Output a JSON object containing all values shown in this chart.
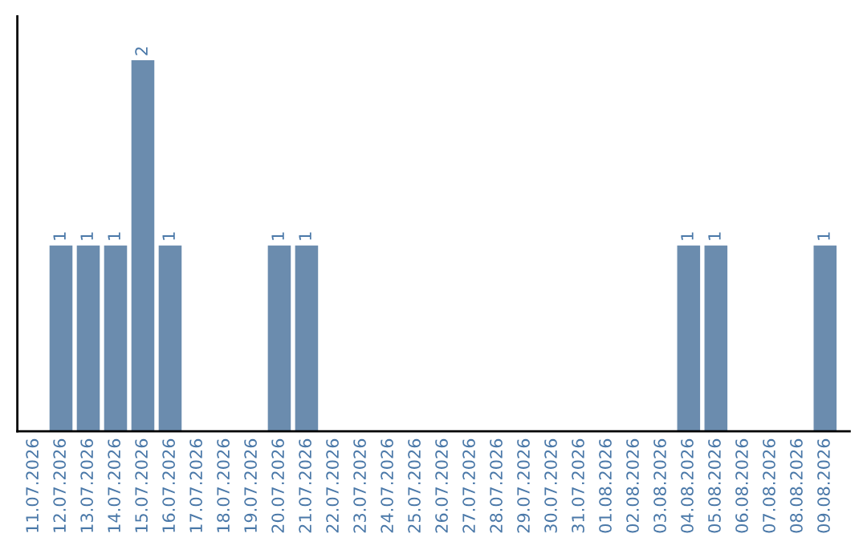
{
  "chart_data": {
    "type": "bar",
    "categories": [
      "11.07.2026",
      "12.07.2026",
      "13.07.2026",
      "14.07.2026",
      "15.07.2026",
      "16.07.2026",
      "17.07.2026",
      "18.07.2026",
      "19.07.2026",
      "20.07.2026",
      "21.07.2026",
      "22.07.2026",
      "23.07.2026",
      "24.07.2026",
      "25.07.2026",
      "26.07.2026",
      "27.07.2026",
      "28.07.2026",
      "29.07.2026",
      "30.07.2026",
      "31.07.2026",
      "01.08.2026",
      "02.08.2026",
      "03.08.2026",
      "04.08.2026",
      "05.08.2026",
      "06.08.2026",
      "07.08.2026",
      "08.08.2026",
      "09.08.2026"
    ],
    "values": [
      0,
      1,
      1,
      1,
      2,
      1,
      0,
      0,
      0,
      1,
      1,
      0,
      0,
      0,
      0,
      0,
      0,
      0,
      0,
      0,
      0,
      0,
      0,
      0,
      1,
      1,
      0,
      0,
      0,
      1
    ],
    "value_labels": [
      null,
      "1",
      "1",
      "1",
      "2",
      "1",
      null,
      null,
      null,
      "1",
      "1",
      null,
      null,
      null,
      null,
      null,
      null,
      null,
      null,
      null,
      null,
      null,
      null,
      null,
      "1",
      "1",
      null,
      null,
      null,
      "1"
    ],
    "color": "#6b8cae",
    "grid": false,
    "legend": false
  }
}
